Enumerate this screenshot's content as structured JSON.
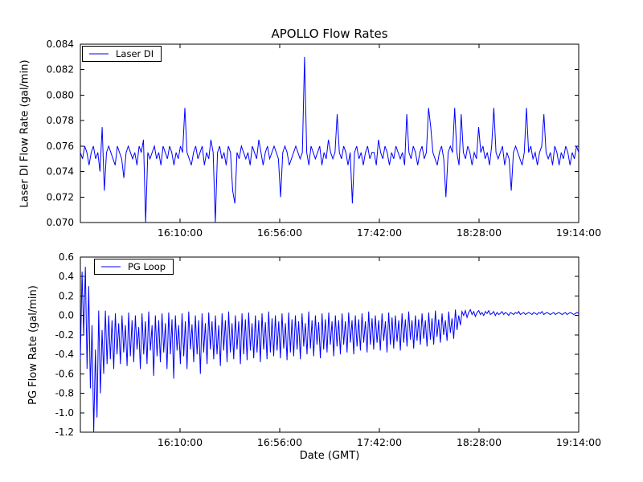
{
  "figure": {
    "background": "#ffffff",
    "line_color": "#0000ff",
    "axis_color": "#000000"
  },
  "chart_data": [
    {
      "type": "line",
      "name": "Laser DI",
      "title": "APOLLO Flow Rates",
      "ylabel": "Laser DI Flow Rate (gal/min)",
      "legend": "Laser DI",
      "legend_position": "upper left",
      "grid": false,
      "ylim": [
        0.07,
        0.084
      ],
      "yticks": [
        0.084,
        0.082,
        0.08,
        0.078,
        0.076,
        0.074,
        0.072,
        0.07
      ],
      "ytick_labels": [
        "0.084",
        "0.082",
        "0.080",
        "0.078",
        "0.076",
        "0.074",
        "0.072",
        "0.070"
      ],
      "xtick_pos": [
        0.2,
        0.4,
        0.6,
        0.8,
        1.0
      ],
      "xtick_labels": [
        "16:10:00",
        "16:56:00",
        "17:42:00",
        "18:28:00",
        "19:14:00"
      ],
      "values": [
        0.0755,
        0.075,
        0.076,
        0.0755,
        0.0745,
        0.0755,
        0.076,
        0.075,
        0.0755,
        0.074,
        0.0775,
        0.0725,
        0.0755,
        0.076,
        0.0755,
        0.075,
        0.0745,
        0.076,
        0.0755,
        0.075,
        0.0735,
        0.0755,
        0.076,
        0.0755,
        0.075,
        0.0755,
        0.0745,
        0.076,
        0.0755,
        0.0765,
        0.07,
        0.0755,
        0.075,
        0.0755,
        0.076,
        0.075,
        0.0755,
        0.0745,
        0.076,
        0.0755,
        0.075,
        0.076,
        0.0755,
        0.0745,
        0.0755,
        0.075,
        0.076,
        0.0755,
        0.079,
        0.0755,
        0.075,
        0.0745,
        0.0755,
        0.076,
        0.075,
        0.0755,
        0.076,
        0.0745,
        0.0755,
        0.075,
        0.0765,
        0.0755,
        0.07,
        0.0755,
        0.076,
        0.075,
        0.0755,
        0.0745,
        0.076,
        0.0755,
        0.0725,
        0.0715,
        0.0755,
        0.075,
        0.076,
        0.0755,
        0.075,
        0.0755,
        0.0745,
        0.076,
        0.0755,
        0.075,
        0.0765,
        0.0755,
        0.0745,
        0.0755,
        0.076,
        0.075,
        0.0755,
        0.076,
        0.0755,
        0.075,
        0.072,
        0.0755,
        0.076,
        0.0755,
        0.0745,
        0.075,
        0.0755,
        0.076,
        0.0755,
        0.075,
        0.0755,
        0.083,
        0.0755,
        0.0745,
        0.076,
        0.0755,
        0.075,
        0.0755,
        0.076,
        0.0745,
        0.0755,
        0.075,
        0.0765,
        0.0755,
        0.075,
        0.0755,
        0.0785,
        0.0755,
        0.075,
        0.076,
        0.0755,
        0.0745,
        0.0755,
        0.0715,
        0.0755,
        0.076,
        0.075,
        0.0755,
        0.0745,
        0.0755,
        0.076,
        0.075,
        0.0755,
        0.0755,
        0.0745,
        0.0765,
        0.0755,
        0.075,
        0.076,
        0.0755,
        0.0745,
        0.0755,
        0.075,
        0.076,
        0.0755,
        0.075,
        0.0755,
        0.0745,
        0.0785,
        0.0755,
        0.075,
        0.076,
        0.0755,
        0.0745,
        0.0755,
        0.076,
        0.075,
        0.0755,
        0.079,
        0.0775,
        0.0755,
        0.075,
        0.0745,
        0.0755,
        0.076,
        0.075,
        0.072,
        0.0755,
        0.076,
        0.0755,
        0.079,
        0.0755,
        0.0745,
        0.0785,
        0.0755,
        0.075,
        0.076,
        0.0755,
        0.0745,
        0.0755,
        0.075,
        0.0775,
        0.0755,
        0.076,
        0.075,
        0.0755,
        0.0745,
        0.076,
        0.079,
        0.0755,
        0.075,
        0.0755,
        0.076,
        0.0745,
        0.0755,
        0.075,
        0.0725,
        0.0755,
        0.076,
        0.0755,
        0.075,
        0.0745,
        0.0755,
        0.079,
        0.0755,
        0.076,
        0.075,
        0.0755,
        0.0745,
        0.0755,
        0.076,
        0.0785,
        0.0755,
        0.075,
        0.0755,
        0.0745,
        0.076,
        0.0755,
        0.0745,
        0.0755,
        0.075,
        0.076,
        0.0755,
        0.0745,
        0.0755,
        0.075,
        0.076,
        0.0755
      ]
    },
    {
      "type": "line",
      "name": "PG Loop",
      "ylabel": "PG Flow Rate (gal/min)",
      "xlabel": "Date (GMT)",
      "legend": "PG Loop",
      "legend_position": "upper left",
      "grid": false,
      "ylim": [
        -1.2,
        0.6
      ],
      "yticks": [
        0.6,
        0.4,
        0.2,
        0.0,
        -0.2,
        -0.4,
        -0.6,
        -0.8,
        -1.0,
        -1.2
      ],
      "ytick_labels": [
        "0.6",
        "0.4",
        "0.2",
        "0.0",
        "-0.2",
        "-0.4",
        "-0.6",
        "-0.8",
        "-1.0",
        "-1.2"
      ],
      "xtick_pos": [
        0.2,
        0.4,
        0.6,
        0.8,
        1.0
      ],
      "xtick_labels": [
        "16:10:00",
        "16:56:00",
        "17:42:00",
        "18:28:00",
        "19:14:00"
      ],
      "values": [
        -0.45,
        0.45,
        -0.2,
        0.5,
        -0.55,
        0.3,
        -0.75,
        -0.1,
        -1.2,
        -0.35,
        -1.05,
        0.05,
        -0.8,
        -0.15,
        -0.6,
        0.05,
        -0.5,
        0.0,
        -0.45,
        -0.05,
        -0.55,
        0.02,
        -0.4,
        -0.08,
        -0.5,
        0.0,
        -0.38,
        -0.1,
        -0.52,
        0.03,
        -0.42,
        -0.05,
        -0.48,
        0.0,
        -0.35,
        -0.12,
        -0.55,
        0.02,
        -0.4,
        -0.06,
        -0.5,
        0.04,
        -0.36,
        -0.1,
        -0.62,
        0.0,
        -0.42,
        -0.05,
        -0.48,
        0.02,
        -0.38,
        -0.08,
        -0.55,
        0.03,
        -0.4,
        -0.04,
        -0.65,
        0.0,
        -0.36,
        -0.1,
        -0.5,
        0.02,
        -0.42,
        -0.06,
        -0.55,
        0.04,
        -0.35,
        -0.09,
        -0.48,
        0.0,
        -0.4,
        -0.05,
        -0.6,
        0.02,
        -0.38,
        -0.08,
        -0.5,
        0.03,
        -0.35,
        -0.06,
        -0.45,
        0.0,
        -0.4,
        -0.1,
        -0.52,
        0.02,
        -0.36,
        -0.05,
        -0.48,
        0.04,
        -0.38,
        -0.08,
        -0.45,
        0.0,
        -0.35,
        -0.06,
        -0.5,
        0.02,
        -0.4,
        -0.04,
        -0.46,
        0.03,
        -0.36,
        -0.08,
        -0.44,
        0.0,
        -0.38,
        -0.05,
        -0.48,
        0.02,
        -0.35,
        -0.07,
        -0.45,
        0.04,
        -0.38,
        -0.03,
        -0.42,
        0.0,
        -0.36,
        -0.06,
        -0.44,
        0.02,
        -0.34,
        -0.08,
        -0.46,
        0.03,
        -0.38,
        -0.04,
        -0.42,
        0.0,
        -0.35,
        -0.06,
        -0.45,
        0.02,
        -0.32,
        -0.08,
        -0.4,
        0.04,
        -0.34,
        -0.05,
        -0.42,
        0.0,
        -0.3,
        -0.07,
        -0.44,
        0.02,
        -0.35,
        -0.04,
        -0.38,
        0.03,
        -0.3,
        -0.06,
        -0.42,
        0.0,
        -0.32,
        -0.05,
        -0.4,
        0.02,
        -0.3,
        -0.06,
        -0.38,
        0.03,
        -0.28,
        -0.05,
        -0.4,
        0.0,
        -0.32,
        -0.04,
        -0.36,
        0.02,
        -0.28,
        -0.06,
        -0.38,
        0.04,
        -0.3,
        -0.03,
        -0.35,
        0.0,
        -0.28,
        -0.05,
        -0.36,
        0.02,
        -0.26,
        -0.06,
        -0.38,
        0.03,
        -0.3,
        -0.02,
        -0.34,
        0.0,
        -0.27,
        -0.05,
        -0.36,
        0.02,
        -0.28,
        -0.04,
        -0.32,
        0.04,
        -0.25,
        -0.05,
        -0.34,
        0.0,
        -0.26,
        -0.04,
        -0.3,
        0.02,
        -0.24,
        -0.05,
        -0.32,
        0.03,
        -0.25,
        -0.03,
        -0.3,
        0.05,
        -0.22,
        -0.04,
        -0.28,
        0.02,
        -0.2,
        -0.05,
        -0.26,
        0.04,
        -0.18,
        -0.03,
        -0.24,
        0.06,
        -0.15,
        0.0,
        -0.1,
        0.04,
        0.0,
        0.05,
        -0.02,
        0.03,
        0.06,
        0.01,
        0.04,
        -0.01,
        0.03,
        0.05,
        0.01,
        0.03,
        0.0,
        0.04,
        0.02,
        0.05,
        0.01,
        0.02,
        0.04,
        0.0,
        0.03,
        0.01,
        0.02,
        0.04,
        0.01,
        0.03,
        0.02,
        0.0,
        0.03,
        0.02,
        0.01,
        0.03,
        0.02,
        0.04,
        0.01,
        0.02,
        0.03,
        0.01,
        0.02,
        0.03,
        0.02,
        0.01,
        0.03,
        0.02,
        0.01,
        0.03,
        0.02,
        0.04,
        0.01,
        0.02,
        0.03,
        0.02,
        0.01,
        0.02,
        0.03,
        0.01,
        0.02,
        0.03,
        0.02,
        0.01,
        0.02,
        0.03,
        0.01,
        0.02,
        0.03,
        0.02,
        0.01,
        0.02,
        0.03,
        0.02
      ]
    }
  ]
}
